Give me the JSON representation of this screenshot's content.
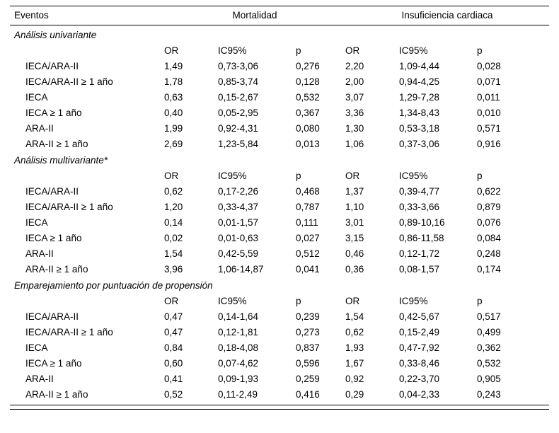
{
  "table": {
    "header": {
      "events_label": "Eventos",
      "group1": "Mortalidad",
      "group2": "Insuficiencia cardiaca"
    },
    "column_headers": [
      "OR",
      "IC95%",
      "p",
      "OR",
      "IC95%",
      "p"
    ],
    "sections": [
      {
        "title": "Análisis univariante",
        "rows": [
          {
            "label": "IECA/ARA-II",
            "values": [
              "1,49",
              "0,73-3,06",
              "0,276",
              "2,20",
              "1,09-4,44",
              "0,028"
            ]
          },
          {
            "label": "IECA/ARA-II ≥ 1 año",
            "values": [
              "1,78",
              "0,85-3,74",
              "0,128",
              "2,00",
              "0,94-4,25",
              "0,071"
            ]
          },
          {
            "label": "IECA",
            "values": [
              "0,63",
              "0,15-2,67",
              "0,532",
              "3,07",
              "1,29-7,28",
              "0,011"
            ]
          },
          {
            "label": "IECA ≥ 1 año",
            "values": [
              "0,40",
              "0,05-2,95",
              "0,367",
              "3,36",
              "1,34-8,43",
              "0,010"
            ]
          },
          {
            "label": "ARA-II",
            "values": [
              "1,99",
              "0,92-4,31",
              "0,080",
              "1,30",
              "0,53-3,18",
              "0,571"
            ]
          },
          {
            "label": "ARA-II ≥ 1 año",
            "values": [
              "2,69",
              "1,23-5,84",
              "0,013",
              "1,06",
              "0,37-3,06",
              "0,916"
            ]
          }
        ]
      },
      {
        "title": "Análisis multivariante*",
        "rows": [
          {
            "label": "IECA/ARA-II",
            "values": [
              "0,62",
              "0,17-2,26",
              "0,468",
              "1,37",
              "0,39-4,77",
              "0,622"
            ]
          },
          {
            "label": "IECA/ARA-II ≥ 1 año",
            "values": [
              "1,20",
              "0,33-4,37",
              "0,787",
              "1,10",
              "0,33-3,66",
              "0,879"
            ]
          },
          {
            "label": "IECA",
            "values": [
              "0,14",
              "0,01-1,57",
              "0,111",
              "3,01",
              "0,89-10,16",
              "0,076"
            ]
          },
          {
            "label": "IECA ≥ 1 año",
            "values": [
              "0,02",
              "0,01-0,63",
              "0,027",
              "3,15",
              "0,86-11,58",
              "0,084"
            ]
          },
          {
            "label": "ARA-II",
            "values": [
              "1,54",
              "0,42-5,59",
              "0,512",
              "0,46",
              "0,12-1,72",
              "0,248"
            ]
          },
          {
            "label": "ARA-II ≥ 1 año",
            "values": [
              "3,96",
              "1,06-14,87",
              "0,041",
              "0,36",
              "0,08-1,57",
              "0,174"
            ]
          }
        ]
      },
      {
        "title": "Emparejamiento por puntuación de propensión",
        "rows": [
          {
            "label": "IECA/ARA-II",
            "values": [
              "0,47",
              "0,14-1,64",
              "0,239",
              "1,54",
              "0,42-5,67",
              "0,517"
            ]
          },
          {
            "label": "IECA/ARA-II ≥ 1 año",
            "values": [
              "0,47",
              "0,12-1,81",
              "0,273",
              "0,62",
              "0,15-2,49",
              "0,499"
            ]
          },
          {
            "label": "IECA",
            "values": [
              "0,84",
              "0,18-4,08",
              "0,837",
              "1,93",
              "0,47-7,92",
              "0,362"
            ]
          },
          {
            "label": "IECA ≥ 1 año",
            "values": [
              "0,60",
              "0,07-4,62",
              "0,596",
              "1,67",
              "0,33-8,46",
              "0,532"
            ]
          },
          {
            "label": "ARA-II",
            "values": [
              "0,41",
              "0,09-1,93",
              "0,259",
              "0,92",
              "0,22-3,70",
              "0,905"
            ]
          },
          {
            "label": "ARA-II ≥ 1 año",
            "values": [
              "0,52",
              "0,11-2,49",
              "0,416",
              "0,29",
              "0,04-2,33",
              "0,243"
            ]
          }
        ]
      }
    ]
  }
}
